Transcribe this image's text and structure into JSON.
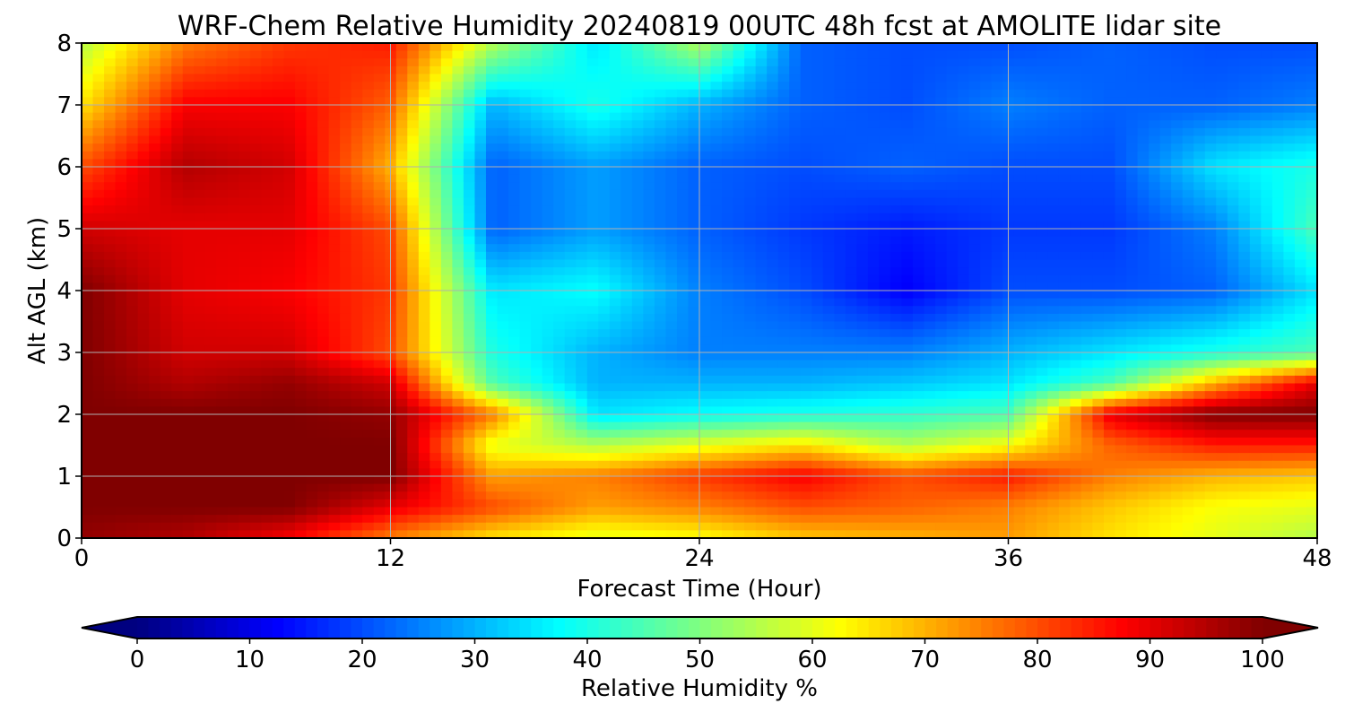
{
  "chart_data": {
    "type": "heatmap",
    "title": "WRF-Chem Relative Humidity 20240819 00UTC 48h fcst at AMOLITE lidar site",
    "xlabel": "Forecast Time (Hour)",
    "ylabel": "Alt AGL (km)",
    "xlim": [
      0,
      48
    ],
    "ylim": [
      0,
      8
    ],
    "xticks": [
      "0",
      "12",
      "24",
      "36",
      "48"
    ],
    "yticks": [
      "0",
      "1",
      "2",
      "3",
      "4",
      "5",
      "6",
      "7",
      "8"
    ],
    "grid": true,
    "colormap": "jet",
    "colorbar": {
      "label": "Relative Humidity %",
      "range": [
        0,
        100
      ],
      "ticks": [
        "0",
        "10",
        "20",
        "30",
        "40",
        "50",
        "60",
        "70",
        "80",
        "90",
        "100"
      ],
      "extend": "both",
      "orientation": "horizontal",
      "placement": "bottom"
    },
    "x": [
      0,
      4,
      8,
      12,
      16,
      20,
      24,
      28,
      32,
      36,
      40,
      44,
      48
    ],
    "y": [
      0,
      0.5,
      1,
      1.5,
      2,
      2.5,
      3,
      4,
      5,
      6,
      7,
      8
    ],
    "z": [
      [
        98,
        95,
        88,
        75,
        65,
        60,
        62,
        68,
        70,
        72,
        65,
        60,
        55
      ],
      [
        100,
        100,
        100,
        90,
        80,
        72,
        75,
        80,
        78,
        75,
        68,
        62,
        60
      ],
      [
        100,
        100,
        100,
        100,
        72,
        75,
        82,
        88,
        80,
        85,
        75,
        70,
        68
      ],
      [
        100,
        100,
        100,
        100,
        60,
        55,
        60,
        65,
        55,
        62,
        78,
        85,
        85
      ],
      [
        100,
        100,
        100,
        98,
        75,
        35,
        38,
        40,
        42,
        45,
        90,
        100,
        100
      ],
      [
        100,
        95,
        98,
        92,
        45,
        30,
        30,
        30,
        32,
        35,
        45,
        70,
        90
      ],
      [
        100,
        92,
        92,
        80,
        40,
        30,
        25,
        25,
        25,
        30,
        35,
        40,
        45
      ],
      [
        100,
        90,
        88,
        82,
        35,
        38,
        25,
        20,
        12,
        20,
        20,
        22,
        35
      ],
      [
        92,
        90,
        90,
        80,
        22,
        28,
        22,
        18,
        15,
        18,
        18,
        25,
        45
      ],
      [
        80,
        95,
        92,
        70,
        22,
        28,
        22,
        20,
        22,
        20,
        20,
        35,
        40
      ],
      [
        65,
        88,
        88,
        78,
        30,
        40,
        30,
        22,
        20,
        25,
        22,
        22,
        25
      ],
      [
        55,
        75,
        82,
        85,
        55,
        35,
        55,
        22,
        20,
        20,
        22,
        20,
        20
      ]
    ]
  }
}
